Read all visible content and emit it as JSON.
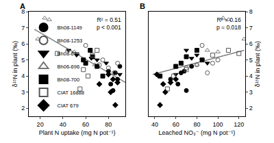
{
  "chart_data": [
    {
      "type": "scatter",
      "title": "A",
      "annotations": [
        "R² = 0.51",
        "p < 0.001"
      ],
      "xlabel": "Plant N uptake (mg N pot⁻¹)",
      "ylabel": "δ¹⁵N in plant (‰)",
      "xlim": [
        10,
        95
      ],
      "xticks": [
        20,
        40,
        60,
        80
      ],
      "ylim": [
        1.5,
        8
      ],
      "yticks": [
        2,
        3,
        4,
        5,
        6,
        7,
        8
      ],
      "legend": "lower left",
      "series": [
        {
          "name": "Bh08-1149",
          "color": "#000000",
          "marker": "circle",
          "x": [
            82,
            84,
            88,
            86,
            90,
            80
          ],
          "values": [
            3.5,
            3.1,
            3.8,
            4.2,
            4.6,
            4.3
          ]
        },
        {
          "name": "Bh08-1253",
          "color": "#555555",
          "marker": "circle-open",
          "x": [
            72,
            88,
            85,
            60,
            75,
            80
          ],
          "values": [
            4.7,
            4.8,
            4.2,
            5.9,
            5.0,
            4.5
          ]
        },
        {
          "name": "Bh08-675",
          "color": "#000000",
          "marker": "triangle-down",
          "x": [
            45,
            52,
            65,
            70,
            78,
            90
          ],
          "values": [
            5.6,
            5.3,
            5.1,
            5.0,
            4.8,
            4.1
          ]
        },
        {
          "name": "Bh06-696",
          "color": "#777777",
          "marker": "triangle-up-open",
          "x": [
            18,
            24,
            28,
            44,
            50,
            68
          ],
          "values": [
            6.3,
            7.6,
            7.5,
            5.6,
            5.5,
            4.7
          ]
        },
        {
          "name": "Bh08-700",
          "color": "#000000",
          "marker": "square",
          "x": [
            58,
            64,
            70,
            75,
            66,
            60
          ],
          "values": [
            5.0,
            5.6,
            4.6,
            4.0,
            5.2,
            4.8
          ]
        },
        {
          "name": "CIAT 16888",
          "color": "#555555",
          "marker": "square-open",
          "x": [
            35,
            55,
            62,
            66,
            70,
            58
          ],
          "values": [
            5.4,
            3.2,
            4.0,
            5.3,
            5.6,
            4.4
          ]
        },
        {
          "name": "CIAT 679",
          "color": "#000000",
          "marker": "diamond",
          "x": [
            72,
            82,
            86,
            88,
            80,
            84
          ],
          "values": [
            3.5,
            3.0,
            2.2,
            3.6,
            4.1,
            3.8
          ]
        }
      ],
      "fit": {
        "x": [
          15,
          95
        ],
        "values": [
          6.9,
          3.6
        ],
        "color": "#808080"
      }
    },
    {
      "type": "scatter",
      "title": "B",
      "annotations": [
        "R² = 0.16",
        "p = 0.018"
      ],
      "xlabel": "Leached NO₃⁻ (mg N pot⁻¹)",
      "ylabel": "δ¹⁵N in plant (‰)",
      "xlim": [
        34,
        126
      ],
      "xticks": [
        40,
        60,
        80,
        100,
        120
      ],
      "ylim": [
        1.5,
        8
      ],
      "yticks": [
        2,
        3,
        4,
        5,
        6,
        7,
        8
      ],
      "series": [
        {
          "name": "Bh08-1149",
          "color": "#000000",
          "marker": "circle",
          "x": [
            62,
            70,
            55,
            65,
            75,
            68
          ],
          "values": [
            3.5,
            3.1,
            3.8,
            4.2,
            4.6,
            4.3
          ]
        },
        {
          "name": "Bh08-1253",
          "color": "#555555",
          "marker": "circle-open",
          "x": [
            80,
            95,
            90,
            85,
            100,
            70
          ],
          "values": [
            4.7,
            4.8,
            4.2,
            5.9,
            5.0,
            4.5
          ]
        },
        {
          "name": "Bh08-675",
          "color": "#000000",
          "marker": "triangle-down",
          "x": [
            70,
            80,
            75,
            85,
            90,
            60
          ],
          "values": [
            5.6,
            5.3,
            5.1,
            5.0,
            4.8,
            4.1
          ]
        },
        {
          "name": "Bh06-696",
          "color": "#777777",
          "marker": "triangle-up-open",
          "x": [
            125,
            105,
            110,
            90,
            100,
            80
          ],
          "values": [
            6.3,
            7.6,
            7.5,
            5.6,
            5.5,
            4.7
          ]
        },
        {
          "name": "Bh08-700",
          "color": "#000000",
          "marker": "square",
          "x": [
            85,
            80,
            60,
            45,
            70,
            65
          ],
          "values": [
            5.0,
            5.6,
            4.6,
            4.0,
            5.2,
            4.8
          ]
        },
        {
          "name": "CIAT 16888",
          "color": "#555555",
          "marker": "square-open",
          "x": [
            120,
            52,
            58,
            95,
            110,
            70
          ],
          "values": [
            5.4,
            3.2,
            4.0,
            5.3,
            5.6,
            4.4
          ]
        },
        {
          "name": "CIAT 679",
          "color": "#000000",
          "marker": "diamond",
          "x": [
            48,
            50,
            45,
            55,
            42,
            60
          ],
          "values": [
            3.5,
            3.0,
            2.2,
            3.6,
            4.1,
            3.8
          ]
        }
      ],
      "fit": {
        "x": [
          38,
          125
        ],
        "values": [
          4.1,
          5.6
        ],
        "color": "#808080"
      }
    }
  ]
}
